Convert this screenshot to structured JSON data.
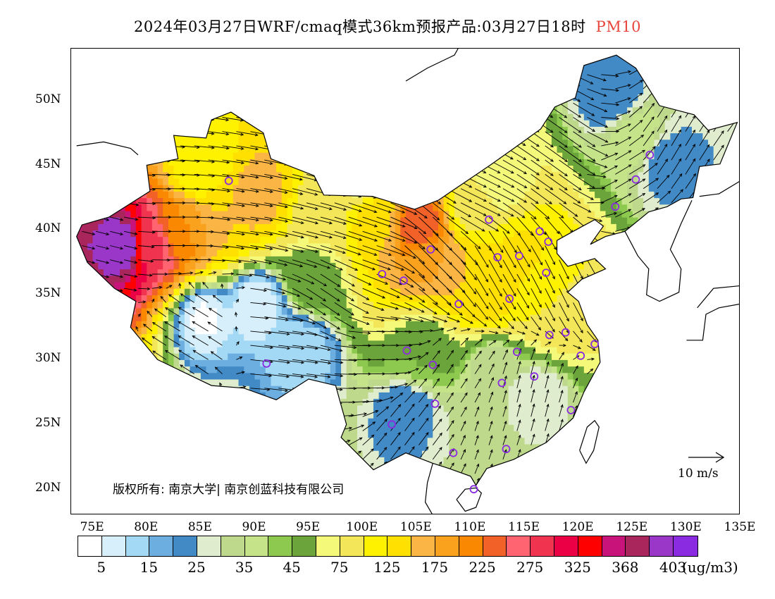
{
  "title": {
    "text": "2024年03月27日WRF/cmaq模式36km预报产品:03月27日18时",
    "pollutant": "PM10"
  },
  "map": {
    "lat_labels": [
      "50N",
      "45N",
      "40N",
      "35N",
      "30N",
      "25N",
      "20N"
    ],
    "lon_labels": [
      "75E",
      "80E",
      "85E",
      "90E",
      "95E",
      "100E",
      "105E",
      "110E",
      "115E",
      "120E",
      "125E",
      "130E",
      "135E"
    ],
    "copyright": "版权所有: 南京大学| 南京创蓝科技有限公司",
    "wind_reference_label": "10 m/s"
  },
  "legend": {
    "colors": [
      "#ffffff",
      "#d7effa",
      "#a3d9f4",
      "#6caedf",
      "#428ac6",
      "#dfeccd",
      "#bfd98c",
      "#c5e48a",
      "#8cc94e",
      "#6ba43a",
      "#f4f97a",
      "#f3e658",
      "#fff200",
      "#ffe000",
      "#fab544",
      "#faa21e",
      "#fa8800",
      "#f26128",
      "#ff6470",
      "#f0334f",
      "#eb0045",
      "#ff0000",
      "#c8147a",
      "#a8265c",
      "#9a37c8",
      "#8a2be2"
    ],
    "labels": [
      "5",
      "15",
      "25",
      "35",
      "45",
      "75",
      "125",
      "175",
      "225",
      "275",
      "325",
      "368",
      "403"
    ],
    "unit": "(ug/m3)"
  },
  "cities": [
    {
      "lon": 87.6,
      "lat": 43.8
    },
    {
      "lon": 91.1,
      "lat": 29.7
    },
    {
      "lon": 101.8,
      "lat": 36.6
    },
    {
      "lon": 103.8,
      "lat": 36.1
    },
    {
      "lon": 106.3,
      "lat": 38.5
    },
    {
      "lon": 108.9,
      "lat": 34.3
    },
    {
      "lon": 111.7,
      "lat": 40.8
    },
    {
      "lon": 112.5,
      "lat": 37.9
    },
    {
      "lon": 114.5,
      "lat": 38.0
    },
    {
      "lon": 116.4,
      "lat": 39.9
    },
    {
      "lon": 117.2,
      "lat": 39.1
    },
    {
      "lon": 117.0,
      "lat": 36.7
    },
    {
      "lon": 113.6,
      "lat": 34.7
    },
    {
      "lon": 123.4,
      "lat": 41.8
    },
    {
      "lon": 125.3,
      "lat": 43.9
    },
    {
      "lon": 126.6,
      "lat": 45.8
    },
    {
      "lon": 104.1,
      "lat": 30.7
    },
    {
      "lon": 106.5,
      "lat": 29.6
    },
    {
      "lon": 114.3,
      "lat": 30.6
    },
    {
      "lon": 117.3,
      "lat": 31.9
    },
    {
      "lon": 118.8,
      "lat": 32.1
    },
    {
      "lon": 121.5,
      "lat": 31.2
    },
    {
      "lon": 120.2,
      "lat": 30.3
    },
    {
      "lon": 112.9,
      "lat": 28.2
    },
    {
      "lon": 115.9,
      "lat": 28.7
    },
    {
      "lon": 119.3,
      "lat": 26.1
    },
    {
      "lon": 113.3,
      "lat": 23.1
    },
    {
      "lon": 108.4,
      "lat": 22.8
    },
    {
      "lon": 106.7,
      "lat": 26.6
    },
    {
      "lon": 102.7,
      "lat": 25.0
    },
    {
      "lon": 110.3,
      "lat": 20.0
    }
  ],
  "pollution_field": [
    {
      "lon": 77.5,
      "lat": 38.5,
      "val": 400
    },
    {
      "lon": 80.5,
      "lat": 38.5,
      "val": 280
    },
    {
      "lon": 83,
      "lat": 39.5,
      "val": 200
    },
    {
      "lon": 87,
      "lat": 41,
      "val": 150
    },
    {
      "lon": 90,
      "lat": 42.5,
      "val": 160
    },
    {
      "lon": 85,
      "lat": 44.5,
      "val": 100
    },
    {
      "lon": 96,
      "lat": 41,
      "val": 80
    },
    {
      "lon": 101,
      "lat": 40.5,
      "val": 140
    },
    {
      "lon": 105,
      "lat": 40,
      "val": 250
    },
    {
      "lon": 106,
      "lat": 37.5,
      "val": 180
    },
    {
      "lon": 108.5,
      "lat": 36.5,
      "val": 150
    },
    {
      "lon": 111.5,
      "lat": 35.5,
      "val": 150
    },
    {
      "lon": 114.5,
      "lat": 37.5,
      "val": 130
    },
    {
      "lon": 116.5,
      "lat": 35,
      "val": 110
    },
    {
      "lon": 118,
      "lat": 33,
      "val": 80
    },
    {
      "lon": 110,
      "lat": 41.5,
      "val": 90
    },
    {
      "lon": 95,
      "lat": 36,
      "val": 50
    },
    {
      "lon": 90,
      "lat": 34,
      "val": 5
    },
    {
      "lon": 85,
      "lat": 33,
      "val": 4
    },
    {
      "lon": 94,
      "lat": 30.5,
      "val": 10
    },
    {
      "lon": 105.5,
      "lat": 30.5,
      "val": 45
    },
    {
      "lon": 112,
      "lat": 29,
      "val": 30
    },
    {
      "lon": 116,
      "lat": 27,
      "val": 25
    },
    {
      "lon": 104,
      "lat": 25.5,
      "val": 20
    },
    {
      "lon": 109,
      "lat": 24,
      "val": 30
    },
    {
      "lon": 125,
      "lat": 47,
      "val": 40
    },
    {
      "lon": 128,
      "lat": 45,
      "val": 22
    },
    {
      "lon": 123,
      "lat": 50,
      "val": 20
    },
    {
      "lon": 100,
      "lat": 44,
      "val": 60
    },
    {
      "lon": 112,
      "lat": 43.5,
      "val": 60
    }
  ],
  "wind_samples": [
    {
      "lon": 76,
      "lat": 39,
      "u": 4,
      "v": -1
    },
    {
      "lon": 82,
      "lat": 40,
      "u": 6,
      "v": 0
    },
    {
      "lon": 88,
      "lat": 41,
      "u": 7,
      "v": -1
    },
    {
      "lon": 94,
      "lat": 40,
      "u": 8,
      "v": -2
    },
    {
      "lon": 100,
      "lat": 40,
      "u": 9,
      "v": -3
    },
    {
      "lon": 106,
      "lat": 39,
      "u": 6,
      "v": -6
    },
    {
      "lon": 112,
      "lat": 38,
      "u": 4,
      "v": -7
    },
    {
      "lon": 118,
      "lat": 37,
      "u": 3,
      "v": -6
    },
    {
      "lon": 85,
      "lat": 32,
      "u": -5,
      "v": 3
    },
    {
      "lon": 92,
      "lat": 31,
      "u": 8,
      "v": -1
    },
    {
      "lon": 100,
      "lat": 30,
      "u": 7,
      "v": 0
    },
    {
      "lon": 108,
      "lat": 28,
      "u": 2,
      "v": 3
    },
    {
      "lon": 115,
      "lat": 27,
      "u": 1,
      "v": 4
    },
    {
      "lon": 104,
      "lat": 24,
      "u": 3,
      "v": 4
    },
    {
      "lon": 112,
      "lat": 24,
      "u": 1,
      "v": 3
    },
    {
      "lon": 118,
      "lat": 46,
      "u": 7,
      "v": -5
    },
    {
      "lon": 124,
      "lat": 44,
      "u": 5,
      "v": 3
    },
    {
      "lon": 128,
      "lat": 46,
      "u": 3,
      "v": 5
    },
    {
      "lon": 110,
      "lat": 43,
      "u": 8,
      "v": -4
    },
    {
      "lon": 96,
      "lat": 35,
      "u": 6,
      "v": -4
    }
  ]
}
